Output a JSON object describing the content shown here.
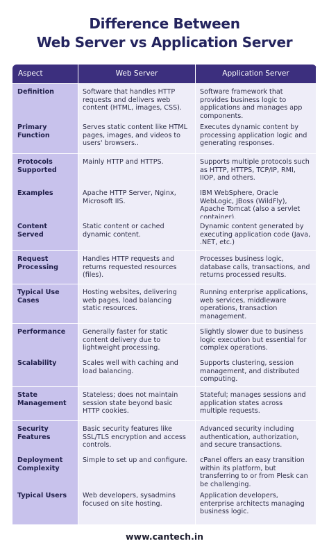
{
  "header": {
    "title": [
      "Difference Between",
      "Web Server vs Application Server"
    ]
  },
  "table": {
    "columns": [
      "Aspect",
      "Web Server",
      "Application Server"
    ],
    "rows": [
      [
        "Definition",
        "Software that handles HTTP requests and delivers web content (HTML, images, CSS).",
        "Software framework that provides business logic to applications and manages app components."
      ],
      [
        "Primary Function",
        "Serves static content like HTML pages, images, and videos to users' browsers..",
        "Executes dynamic content by processing application logic and generating responses."
      ],
      [
        "Protocols Supported",
        "Mainly HTTP and HTTPS.",
        "Supports multiple protocols such as HTTP, HTTPS, TCP/IP, RMI, IIOP, and others."
      ],
      [
        "Examples",
        "Apache HTTP Server, Nginx, Microsoft IIS.",
        "IBM WebSphere, Oracle WebLogic, JBoss (WildFly), Apache Tomcat (also a servlet container)."
      ],
      [
        "Content Served",
        "Static content or cached dynamic content.",
        "Dynamic content generated by executing application code (Java, .NET, etc.)"
      ],
      [
        "Request Processing",
        "Handles HTTP requests and returns requested resources (files).",
        "Processes business logic, database calls, transactions, and returns processed results."
      ],
      [
        "Typical Use Cases",
        "Hosting websites, delivering web pages, load balancing static resources.",
        "Running enterprise applications, web services, middleware operations, transaction management."
      ],
      [
        "Performance",
        "Generally faster for static content delivery due to lightweight processing.",
        "Slightly slower due to business logic execution but essential for complex operations."
      ],
      [
        "Scalability",
        "Scales well with caching and load balancing.",
        "Supports clustering, session management, and distributed computing."
      ],
      [
        "State Management",
        "Stateless; does not maintain session state beyond basic HTTP cookies.",
        "Stateful; manages sessions and application states across multiple requests."
      ],
      [
        "Security Features",
        "Basic security features like SSL/TLS encryption and access controls.",
        "Advanced security including authentication, authorization, and secure transactions."
      ],
      [
        "Deployment Complexity",
        "Simple to set up and configure.",
        "cPanel offers an easy transition within its platform, but transferring to or from Plesk can be challenging."
      ],
      [
        "Typical Users",
        "Web developers, sysadmins focused on site hosting.",
        "Application developers, enterprise architects managing business logic."
      ]
    ]
  },
  "footer": "www.cantech.in"
}
